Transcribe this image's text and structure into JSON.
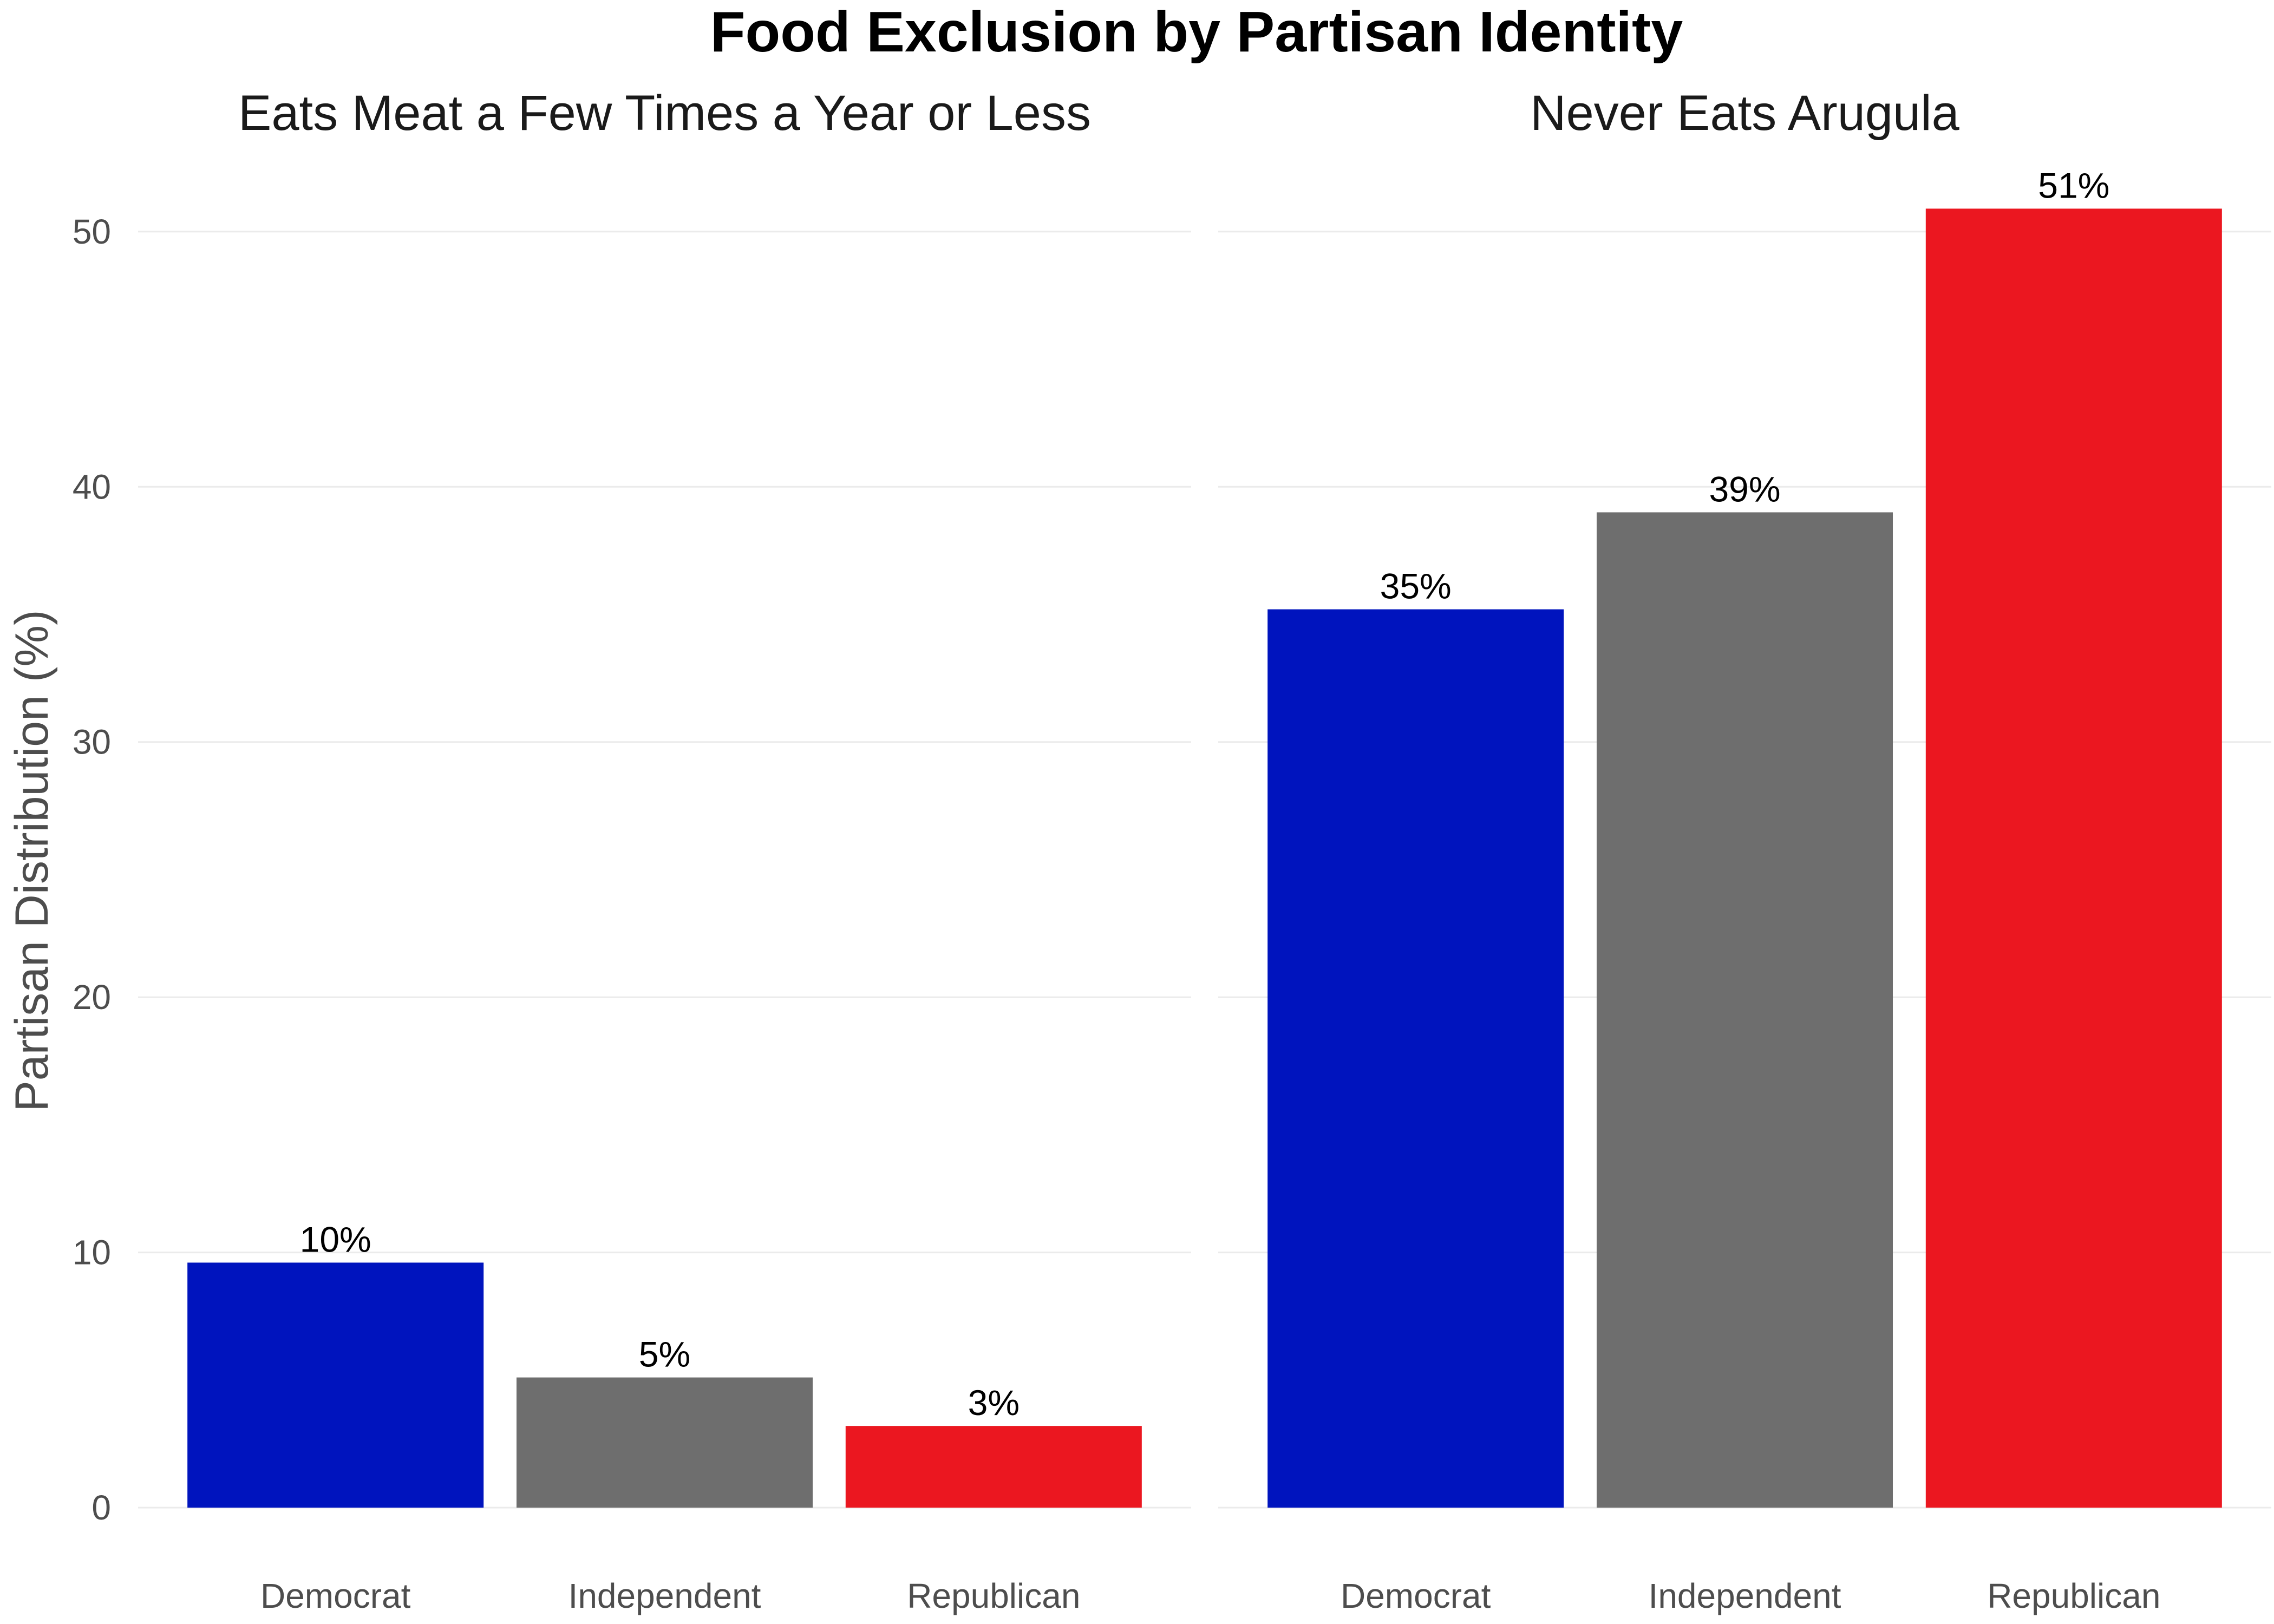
{
  "chart_data": {
    "type": "bar",
    "title": "Food Exclusion by Partisan Identity",
    "ylabel": "Partisan Distribution (%)",
    "xlabel": "",
    "ylim": [
      0,
      52.5
    ],
    "yticks": [
      0,
      10,
      20,
      30,
      40,
      50
    ],
    "grid": true,
    "legend": "none",
    "categories": [
      "Democrat",
      "Independent",
      "Republican"
    ],
    "colors": {
      "Democrat": "#0014be",
      "Independent": "#6e6e6e",
      "Republican": "#eb1720"
    },
    "panels": [
      {
        "title": "Eats Meat a Few Times a Year or Less",
        "values": [
          9.6,
          5.1,
          3.2
        ],
        "labels": [
          "10%",
          "5%",
          "3%"
        ]
      },
      {
        "title": "Never Eats Arugula",
        "values": [
          35.2,
          39.0,
          50.9
        ],
        "labels": [
          "35%",
          "39%",
          "51%"
        ]
      }
    ]
  }
}
